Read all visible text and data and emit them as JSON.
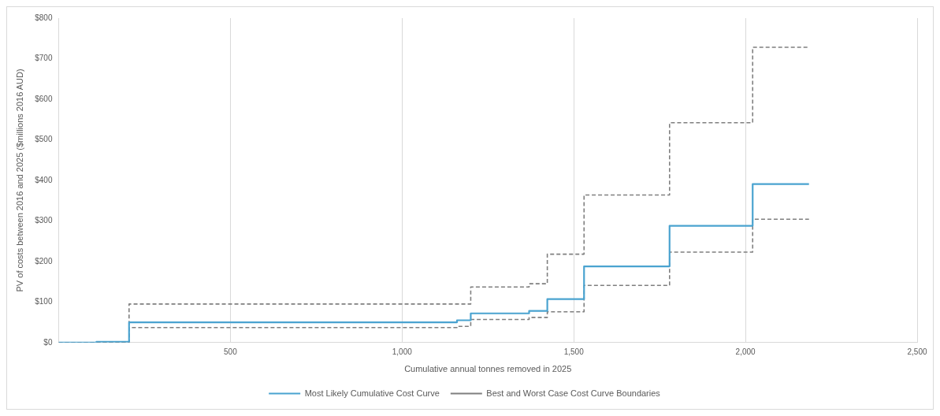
{
  "chart_data": {
    "type": "step",
    "xlabel": "Cumulative annual tonnes removed in 2025",
    "ylabel": "PV of costs between 2016 and 2025 ($millions 2016 AUD)",
    "xlim": [
      0,
      2500
    ],
    "ylim": [
      0,
      800
    ],
    "xticks": [
      {
        "value": 0,
        "label": null
      },
      {
        "value": 500,
        "label": "500"
      },
      {
        "value": 1000,
        "label": "1,000"
      },
      {
        "value": 1500,
        "label": "1,500"
      },
      {
        "value": 2000,
        "label": "2,000"
      },
      {
        "value": 2500,
        "label": "2,500"
      }
    ],
    "yticks": [
      {
        "value": 0,
        "label": "$0"
      },
      {
        "value": 100,
        "label": "$100"
      },
      {
        "value": 200,
        "label": "$200"
      },
      {
        "value": 300,
        "label": "$300"
      },
      {
        "value": 400,
        "label": "$400"
      },
      {
        "value": 500,
        "label": "$500"
      },
      {
        "value": 600,
        "label": "$600"
      },
      {
        "value": 700,
        "label": "$700"
      },
      {
        "value": 800,
        "label": "$800"
      }
    ],
    "grid": "x",
    "legend": "bottom",
    "series": [
      {
        "name": "Most Likely Cumulative Cost Curve",
        "color": "#4aa3d0",
        "line_style": "solid",
        "x": [
          0,
          110,
          205,
          1160,
          1200,
          1370,
          1423,
          1530,
          1779,
          2021,
          2185
        ],
        "values": [
          0,
          2,
          50,
          55,
          72,
          78,
          107,
          188,
          288,
          391,
          391
        ]
      },
      {
        "name": "Best and Worst Case Cost Curve Boundaries",
        "color": "#7f7f7f",
        "line_style": "dashed",
        "x": [
          0,
          205,
          1200,
          1370,
          1423,
          1530,
          1779,
          2021,
          2185
        ],
        "values": [
          0,
          95,
          137,
          145,
          218,
          364,
          542,
          728,
          728
        ]
      },
      {
        "color": "#7f7f7f",
        "line_style": "dashed",
        "x": [
          0,
          205,
          1160,
          1200,
          1370,
          1423,
          1530,
          1779,
          2021,
          2185
        ],
        "values": [
          0,
          37,
          40,
          57,
          62,
          76,
          141,
          223,
          304,
          304
        ]
      }
    ]
  }
}
